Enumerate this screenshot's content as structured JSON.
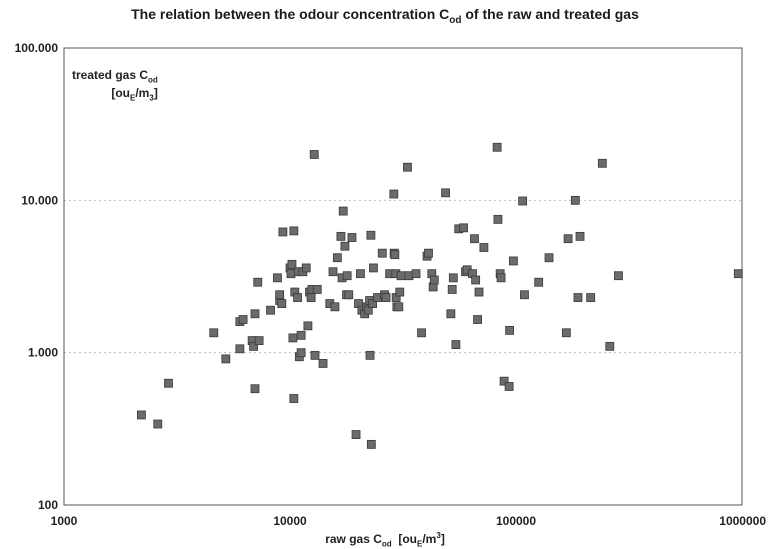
{
  "chart_data": {
    "type": "scatter",
    "title": "The relation between the odour concentration C",
    "title_sub": "od",
    "title_rest": " of the raw and treated gas",
    "ylabel_line1": "treated gas C",
    "ylabel_line1_sub": "od",
    "ylabel_line2_a": "[ou",
    "ylabel_line2_sub": "E",
    "ylabel_line2_b": "/m",
    "ylabel_line2_sub2": "3",
    "ylabel_line2_c": "]",
    "xlabel_a": "raw gas C",
    "xlabel_sub": "od",
    "xlabel_b": "  [ou",
    "xlabel_sub2": "E",
    "xlabel_c": "/m",
    "xlabel_sup": "3",
    "xlabel_d": "]",
    "x_scale": "log",
    "y_scale": "log",
    "xlim": [
      1000,
      1000000
    ],
    "ylim": [
      100,
      100000
    ],
    "x_ticks": [
      1000,
      10000,
      100000,
      1000000
    ],
    "x_tick_labels": [
      "1000",
      "10000",
      "100000",
      "1000000"
    ],
    "y_ticks": [
      100,
      1000,
      10000,
      100000
    ],
    "y_tick_labels": [
      "100",
      "1.000",
      "10.000",
      "100.000"
    ],
    "grid": "horizontal dashed",
    "marker_color": "#6b6b6b",
    "points": [
      [
        2200,
        390
      ],
      [
        2600,
        340
      ],
      [
        2900,
        630
      ],
      [
        4600,
        1350
      ],
      [
        5200,
        910
      ],
      [
        6000,
        1600
      ],
      [
        6200,
        1650
      ],
      [
        6000,
        1060
      ],
      [
        6800,
        1200
      ],
      [
        6900,
        1100
      ],
      [
        7000,
        580
      ],
      [
        7000,
        1800
      ],
      [
        7200,
        2900
      ],
      [
        7300,
        1200
      ],
      [
        8200,
        1900
      ],
      [
        8800,
        3100
      ],
      [
        9000,
        2200
      ],
      [
        9200,
        2100
      ],
      [
        9300,
        6200
      ],
      [
        9000,
        2400
      ],
      [
        10000,
        3600
      ],
      [
        10100,
        3300
      ],
      [
        10200,
        3800
      ],
      [
        10400,
        6300
      ],
      [
        10400,
        500
      ],
      [
        10500,
        2500
      ],
      [
        10300,
        1250
      ],
      [
        10800,
        2300
      ],
      [
        10900,
        3400
      ],
      [
        11000,
        940
      ],
      [
        11200,
        1000
      ],
      [
        11400,
        3400
      ],
      [
        11200,
        1300
      ],
      [
        11800,
        3600
      ],
      [
        12000,
        1500
      ],
      [
        12200,
        2500
      ],
      [
        12400,
        2300
      ],
      [
        12500,
        2600
      ],
      [
        12800,
        20000
      ],
      [
        12900,
        960
      ],
      [
        13200,
        2600
      ],
      [
        14000,
        850
      ],
      [
        15000,
        2100
      ],
      [
        15500,
        3400
      ],
      [
        15800,
        2000
      ],
      [
        16200,
        4200
      ],
      [
        16800,
        5800
      ],
      [
        17000,
        3100
      ],
      [
        17200,
        8500
      ],
      [
        17500,
        5000
      ],
      [
        17800,
        2400
      ],
      [
        17900,
        3200
      ],
      [
        18200,
        2400
      ],
      [
        18800,
        5700
      ],
      [
        19600,
        290
      ],
      [
        20100,
        2100
      ],
      [
        20500,
        3300
      ],
      [
        20800,
        1900
      ],
      [
        21400,
        1800
      ],
      [
        21800,
        2000
      ],
      [
        22200,
        1900
      ],
      [
        22500,
        2200
      ],
      [
        22600,
        960
      ],
      [
        22800,
        5900
      ],
      [
        22900,
        250
      ],
      [
        23200,
        2100
      ],
      [
        23400,
        3600
      ],
      [
        24400,
        2300
      ],
      [
        25600,
        4500
      ],
      [
        26200,
        2400
      ],
      [
        26600,
        2300
      ],
      [
        27600,
        3300
      ],
      [
        28800,
        11000
      ],
      [
        28900,
        4500
      ],
      [
        29100,
        4400
      ],
      [
        29400,
        3300
      ],
      [
        29500,
        2300
      ],
      [
        29700,
        2000
      ],
      [
        30300,
        2000
      ],
      [
        30600,
        2500
      ],
      [
        31000,
        3200
      ],
      [
        33100,
        16500
      ],
      [
        33600,
        3200
      ],
      [
        36100,
        3300
      ],
      [
        38200,
        1350
      ],
      [
        40400,
        4300
      ],
      [
        41000,
        4500
      ],
      [
        42400,
        3300
      ],
      [
        43000,
        2700
      ],
      [
        43500,
        3000
      ],
      [
        48800,
        11200
      ],
      [
        51500,
        1800
      ],
      [
        52200,
        2600
      ],
      [
        52800,
        3100
      ],
      [
        54200,
        1130
      ],
      [
        55800,
        6500
      ],
      [
        58600,
        6600
      ],
      [
        59800,
        3400
      ],
      [
        60800,
        3500
      ],
      [
        64200,
        3300
      ],
      [
        65500,
        5600
      ],
      [
        66300,
        3000
      ],
      [
        67600,
        1650
      ],
      [
        68600,
        2500
      ],
      [
        72100,
        4900
      ],
      [
        82500,
        22300
      ],
      [
        83200,
        7500
      ],
      [
        85100,
        3300
      ],
      [
        85900,
        3100
      ],
      [
        88600,
        650
      ],
      [
        93200,
        600
      ],
      [
        93700,
        1400
      ],
      [
        97400,
        4000
      ],
      [
        107000,
        9900
      ],
      [
        109000,
        2400
      ],
      [
        126000,
        2900
      ],
      [
        140000,
        4200
      ],
      [
        167000,
        1350
      ],
      [
        170000,
        5600
      ],
      [
        183000,
        10000
      ],
      [
        188000,
        2300
      ],
      [
        192000,
        5800
      ],
      [
        214000,
        2300
      ],
      [
        241000,
        17500
      ],
      [
        260000,
        1100
      ],
      [
        284000,
        3200
      ],
      [
        963000,
        3300
      ]
    ]
  }
}
